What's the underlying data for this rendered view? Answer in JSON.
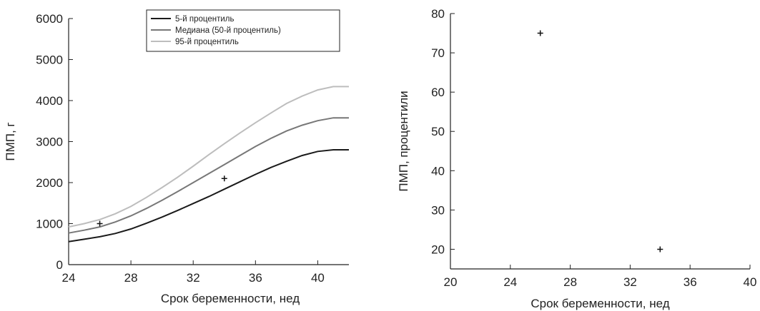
{
  "chart_data": [
    {
      "type": "line",
      "xlabel": "Срок беременности, нед",
      "ylabel": "ПМП, г",
      "xlim": [
        24,
        42
      ],
      "ylim": [
        0,
        6000
      ],
      "xticks": [
        24,
        28,
        32,
        36,
        40
      ],
      "yticks": [
        0,
        1000,
        2000,
        3000,
        4000,
        5000,
        6000
      ],
      "grid": false,
      "legend": "top-right",
      "x": [
        24,
        25,
        26,
        27,
        28,
        29,
        30,
        31,
        32,
        33,
        34,
        35,
        36,
        37,
        38,
        39,
        40,
        41,
        42
      ],
      "series": [
        {
          "name": "5-й процентиль",
          "color": "#1a1a1a",
          "values": [
            560,
            620,
            680,
            760,
            870,
            1010,
            1160,
            1320,
            1490,
            1660,
            1840,
            2020,
            2200,
            2370,
            2520,
            2660,
            2760,
            2800,
            2800
          ]
        },
        {
          "name": "Медиана (50-й процентиль)",
          "color": "#777777",
          "values": [
            770,
            840,
            920,
            1040,
            1190,
            1370,
            1570,
            1780,
            2000,
            2220,
            2440,
            2660,
            2880,
            3080,
            3260,
            3400,
            3510,
            3580,
            3580
          ]
        },
        {
          "name": "95-й процентиль",
          "color": "#bdbdbd",
          "values": [
            920,
            1000,
            1100,
            1240,
            1420,
            1640,
            1880,
            2130,
            2400,
            2680,
            2950,
            3210,
            3460,
            3700,
            3930,
            4110,
            4260,
            4340,
            4340
          ]
        }
      ],
      "points": [
        {
          "x": 26,
          "y": 1000
        },
        {
          "x": 34,
          "y": 2100
        }
      ]
    },
    {
      "type": "scatter",
      "xlabel": "Срок беременности, нед",
      "ylabel": "ПМП, процентили",
      "xlim": [
        20,
        40
      ],
      "ylim": [
        15,
        80
      ],
      "xticks": [
        20,
        24,
        28,
        32,
        36,
        40
      ],
      "yticks": [
        20,
        30,
        40,
        50,
        60,
        70,
        80
      ],
      "grid": false,
      "points": [
        {
          "x": 26,
          "y": 75
        },
        {
          "x": 34,
          "y": 20
        }
      ]
    }
  ]
}
